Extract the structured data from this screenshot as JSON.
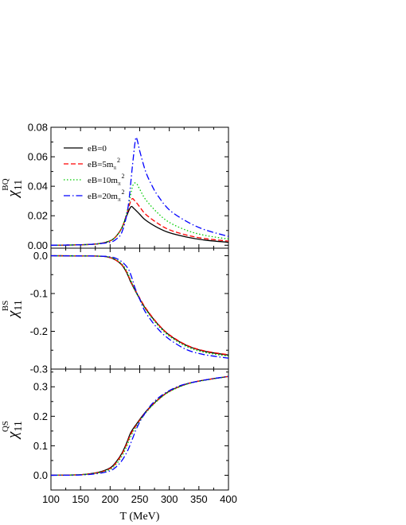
{
  "chart_data": {
    "type": "line",
    "shared_x": {
      "label": "T (MeV)",
      "xlim": [
        100,
        400
      ],
      "ticks": [
        "100",
        "150",
        "200",
        "250",
        "300",
        "350",
        "400"
      ]
    },
    "legend": {
      "placement": "top-left of top panel",
      "entries": [
        {
          "prefix": "eB=0",
          "sup": "",
          "sub": ""
        },
        {
          "prefix": "eB=5m",
          "sup": "2",
          "sub": "π"
        },
        {
          "prefix": "eB=10m",
          "sup": "2",
          "sub": "π"
        },
        {
          "prefix": "eB=20m",
          "sup": "2",
          "sub": "π"
        }
      ]
    },
    "series_styles": [
      {
        "color": "#000000",
        "dash": "solid"
      },
      {
        "color": "#ff0000",
        "dash": "dashed"
      },
      {
        "color": "#00cc00",
        "dash": "dotted"
      },
      {
        "color": "#0000ff",
        "dash": "dashdot"
      }
    ],
    "panels": [
      {
        "id": "BQ",
        "ylabel": {
          "main": "χ",
          "sub": "11",
          "sup": "BQ"
        },
        "ylim": [
          -0.002,
          0.08
        ],
        "ticks": [
          {
            "v": 0.0,
            "t": "0.00"
          },
          {
            "v": 0.02,
            "t": "0.02"
          },
          {
            "v": 0.04,
            "t": "0.04"
          },
          {
            "v": 0.06,
            "t": "0.06"
          },
          {
            "v": 0.08,
            "t": "0.08"
          }
        ],
        "series": [
          {
            "name": "eB=0",
            "x": [
              100,
              150,
              180,
              200,
              210,
              220,
              228,
              235,
              240,
              250,
              260,
              280,
              300,
              330,
              360,
              400
            ],
            "y": [
              0.0,
              0.0003,
              0.001,
              0.003,
              0.006,
              0.012,
              0.02,
              0.026,
              0.025,
              0.021,
              0.017,
              0.012,
              0.0085,
              0.0055,
              0.0035,
              0.002
            ]
          },
          {
            "name": "eB=5m",
            "x": [
              100,
              150,
              180,
              200,
              210,
              220,
              228,
              236,
              242,
              250,
              260,
              280,
              300,
              330,
              360,
              400
            ],
            "y": [
              0.0,
              0.0003,
              0.001,
              0.003,
              0.006,
              0.012,
              0.021,
              0.031,
              0.03,
              0.026,
              0.021,
              0.015,
              0.0105,
              0.0068,
              0.0045,
              0.0028
            ]
          },
          {
            "name": "eB=10m",
            "x": [
              100,
              150,
              180,
              200,
              210,
              220,
              230,
              238,
              244,
              250,
              260,
              280,
              300,
              330,
              360,
              400
            ],
            "y": [
              0.0,
              0.0003,
              0.001,
              0.003,
              0.006,
              0.012,
              0.025,
              0.04,
              0.042,
              0.038,
              0.031,
              0.022,
              0.0155,
              0.01,
              0.0067,
              0.0042
            ]
          },
          {
            "name": "eB=20m",
            "x": [
              100,
              150,
              180,
              200,
              210,
              220,
              230,
              238,
              243,
              246,
              250,
              260,
              270,
              280,
              300,
              330,
              360,
              400
            ],
            "y": [
              0.0,
              0.0003,
              0.001,
              0.002,
              0.004,
              0.009,
              0.025,
              0.055,
              0.072,
              0.071,
              0.064,
              0.05,
              0.041,
              0.034,
              0.024,
              0.016,
              0.0105,
              0.006
            ]
          }
        ]
      },
      {
        "id": "BS",
        "ylabel": {
          "main": "χ",
          "sub": "11",
          "sup": "BS"
        },
        "ylim": [
          -0.3,
          0.02
        ],
        "ticks": [
          {
            "v": 0.0,
            "t": "0.0"
          },
          {
            "v": -0.1,
            "t": "-0.1"
          },
          {
            "v": -0.2,
            "t": "-0.2"
          },
          {
            "v": -0.3,
            "t": "-0.3"
          }
        ],
        "series": [
          {
            "name": "eB=0",
            "x": [
              100,
              180,
              200,
              210,
              220,
              228,
              235,
              245,
              260,
              280,
              300,
              330,
              360,
              400
            ],
            "y": [
              0.0,
              -0.001,
              -0.005,
              -0.012,
              -0.025,
              -0.045,
              -0.07,
              -0.1,
              -0.14,
              -0.18,
              -0.21,
              -0.238,
              -0.253,
              -0.263
            ]
          },
          {
            "name": "eB=5m",
            "x": [
              100,
              180,
              200,
              210,
              220,
              228,
              235,
              245,
              260,
              280,
              300,
              330,
              360,
              400
            ],
            "y": [
              0.0,
              -0.001,
              -0.005,
              -0.012,
              -0.024,
              -0.043,
              -0.068,
              -0.098,
              -0.138,
              -0.179,
              -0.209,
              -0.237,
              -0.252,
              -0.262
            ]
          },
          {
            "name": "eB=10m",
            "x": [
              100,
              180,
              200,
              210,
              220,
              228,
              235,
              245,
              260,
              280,
              300,
              330,
              360,
              400
            ],
            "y": [
              0.0,
              -0.001,
              -0.004,
              -0.01,
              -0.022,
              -0.04,
              -0.065,
              -0.1,
              -0.142,
              -0.183,
              -0.213,
              -0.241,
              -0.256,
              -0.266
            ]
          },
          {
            "name": "eB=20m",
            "x": [
              100,
              180,
              200,
              210,
              220,
              230,
              236,
              242,
              250,
              260,
              280,
              300,
              330,
              360,
              400
            ],
            "y": [
              0.0,
              -0.001,
              -0.003,
              -0.007,
              -0.016,
              -0.033,
              -0.055,
              -0.085,
              -0.115,
              -0.15,
              -0.192,
              -0.221,
              -0.249,
              -0.262,
              -0.271
            ]
          }
        ]
      },
      {
        "id": "QS",
        "ylabel": {
          "main": "χ",
          "sub": "11",
          "sup": "QS"
        },
        "ylim": [
          -0.05,
          0.36
        ],
        "ticks": [
          {
            "v": 0.0,
            "t": "0.0"
          },
          {
            "v": 0.1,
            "t": "0.1"
          },
          {
            "v": 0.2,
            "t": "0.2"
          },
          {
            "v": 0.3,
            "t": "0.3"
          }
        ],
        "series": [
          {
            "name": "eB=0",
            "x": [
              100,
              150,
              180,
              200,
              210,
              220,
              228,
              235,
              245,
              260,
              280,
              300,
              330,
              360,
              400
            ],
            "y": [
              0.0,
              0.002,
              0.01,
              0.025,
              0.045,
              0.075,
              0.11,
              0.145,
              0.175,
              0.215,
              0.255,
              0.285,
              0.31,
              0.323,
              0.335
            ]
          },
          {
            "name": "eB=5m",
            "x": [
              100,
              150,
              180,
              200,
              210,
              220,
              228,
              235,
              245,
              260,
              280,
              300,
              330,
              360,
              400
            ],
            "y": [
              0.0,
              0.002,
              0.009,
              0.023,
              0.042,
              0.072,
              0.106,
              0.14,
              0.172,
              0.213,
              0.254,
              0.284,
              0.31,
              0.323,
              0.335
            ]
          },
          {
            "name": "eB=10m",
            "x": [
              100,
              150,
              180,
              200,
              210,
              220,
              228,
              235,
              245,
              260,
              280,
              300,
              330,
              360,
              400
            ],
            "y": [
              0.0,
              0.002,
              0.008,
              0.02,
              0.037,
              0.065,
              0.098,
              0.132,
              0.168,
              0.211,
              0.253,
              0.283,
              0.309,
              0.322,
              0.335
            ]
          },
          {
            "name": "eB=20m",
            "x": [
              100,
              150,
              180,
              200,
              210,
              220,
              230,
              238,
              245,
              255,
              270,
              290,
              320,
              360,
              400
            ],
            "y": [
              0.0,
              0.001,
              0.006,
              0.015,
              0.028,
              0.05,
              0.085,
              0.125,
              0.16,
              0.198,
              0.24,
              0.275,
              0.305,
              0.323,
              0.335
            ]
          }
        ]
      }
    ]
  }
}
